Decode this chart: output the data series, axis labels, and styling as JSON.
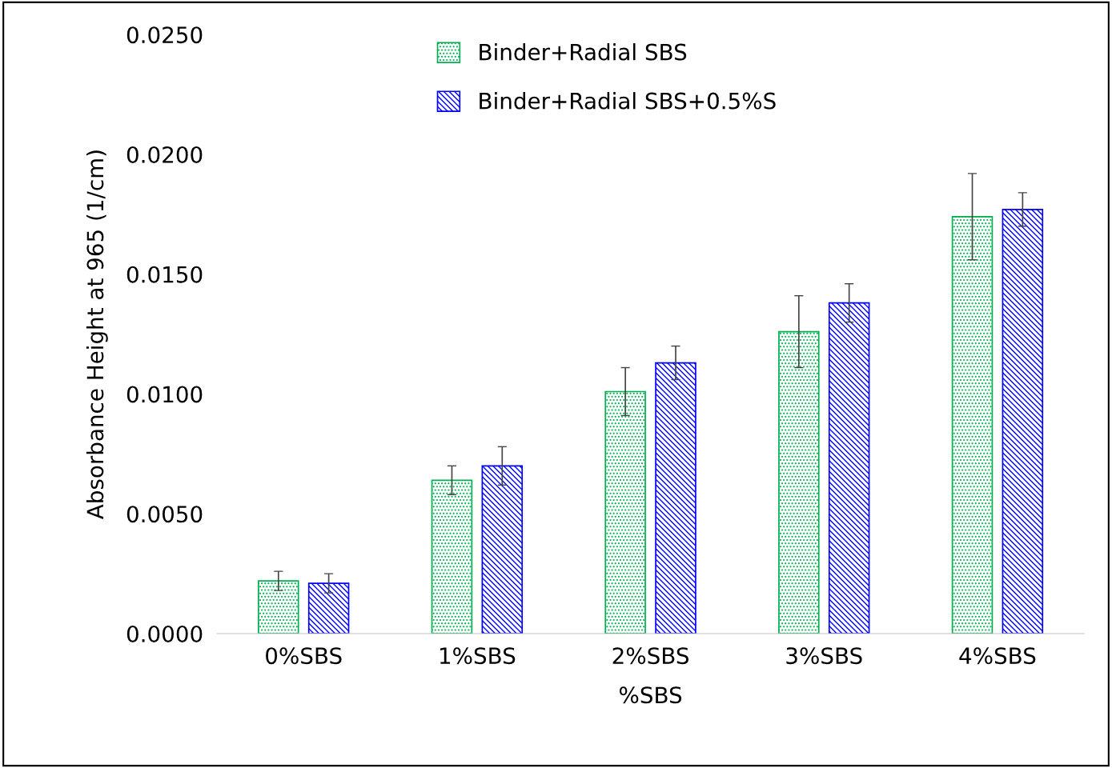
{
  "chart_data": {
    "type": "bar",
    "xlabel": "%SBS",
    "ylabel": "Absorbance Height at 965 (1/cm)",
    "categories": [
      "0%SBS",
      "1%SBS",
      "2%SBS",
      "3%SBS",
      "4%SBS"
    ],
    "series": [
      {
        "name": "Binder+Radial SBS",
        "color": "#00b050",
        "values": [
          0.0022,
          0.0064,
          0.0101,
          0.0126,
          0.0174
        ],
        "errors": [
          0.0004,
          0.0006,
          0.001,
          0.0015,
          0.0018
        ]
      },
      {
        "name": "Binder+Radial SBS+0.5%S",
        "color": "#0000ff",
        "values": [
          0.0021,
          0.007,
          0.0113,
          0.0138,
          0.0177
        ],
        "errors": [
          0.0004,
          0.0008,
          0.0007,
          0.0008,
          0.0007
        ]
      }
    ],
    "ylim": [
      0,
      0.025
    ],
    "yticks": [
      {
        "value": 0,
        "label": "0.0000"
      },
      {
        "value": 0.005,
        "label": "0.0050"
      },
      {
        "value": 0.01,
        "label": "0.0100"
      },
      {
        "value": 0.015,
        "label": "0.0150"
      },
      {
        "value": 0.02,
        "label": "0.0200"
      },
      {
        "value": 0.025,
        "label": "0.0250"
      }
    ],
    "grid": false,
    "legend": "top"
  }
}
